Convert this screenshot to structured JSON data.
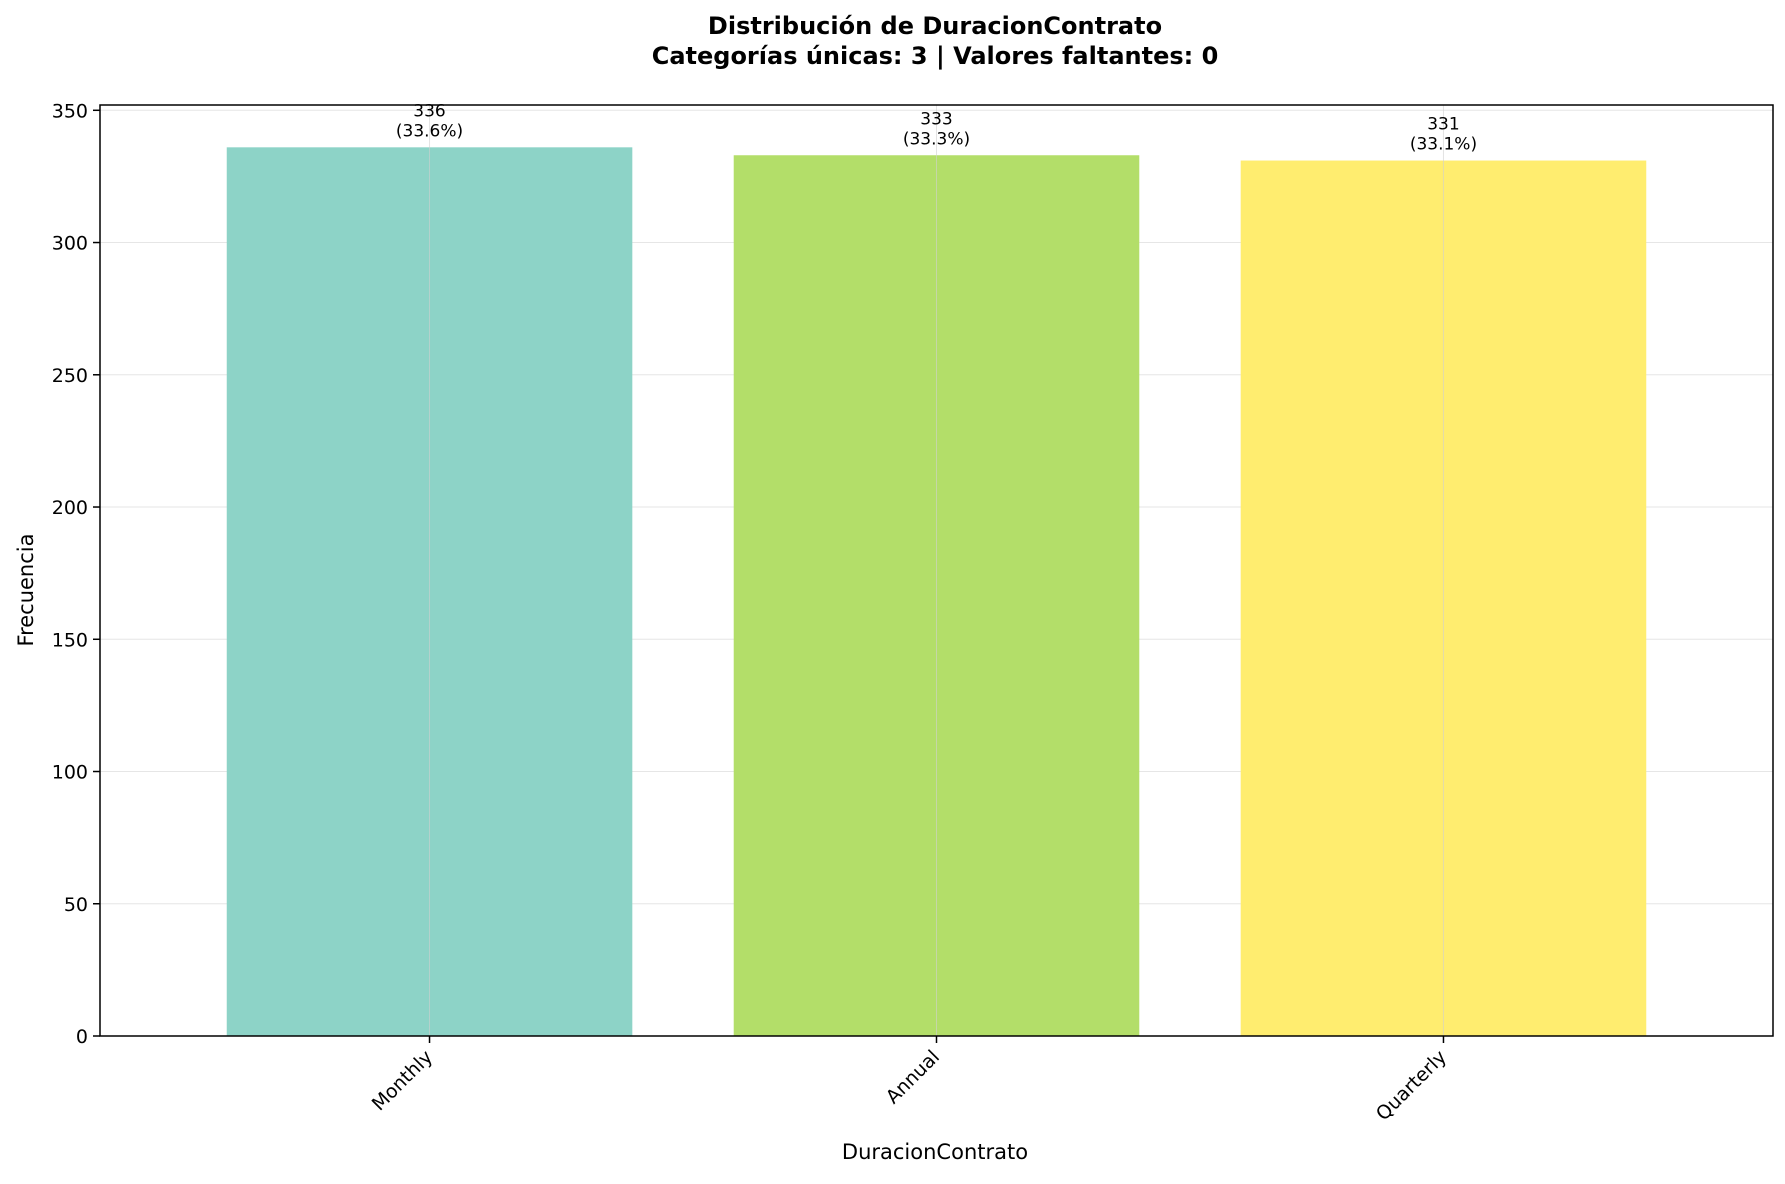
{
  "chart_data": {
    "type": "bar",
    "title": "Distribución de DuracionContrato",
    "subtitle": "Categorías únicas: 3 | Valores faltantes: 0",
    "xlabel": "DuracionContrato",
    "ylabel": "Frecuencia",
    "categories": [
      "Monthly",
      "Annual",
      "Quarterly"
    ],
    "values": [
      336,
      333,
      331
    ],
    "value_labels": [
      {
        "count": "336",
        "percent": "(33.6%)"
      },
      {
        "count": "333",
        "percent": "(33.3%)"
      },
      {
        "count": "331",
        "percent": "(33.1%)"
      }
    ],
    "colors": [
      "#8dd3c7",
      "#b3de69",
      "#ffed6f"
    ],
    "ylim": [
      0,
      352
    ],
    "yticks": [
      0,
      50,
      100,
      150,
      200,
      250,
      300,
      350
    ],
    "ytick_labels": [
      "0",
      "50",
      "100",
      "150",
      "200",
      "250",
      "300",
      "350"
    ],
    "grid": true,
    "grid_color": "#e6e6e6",
    "x_tick_rotation_deg": 45
  }
}
